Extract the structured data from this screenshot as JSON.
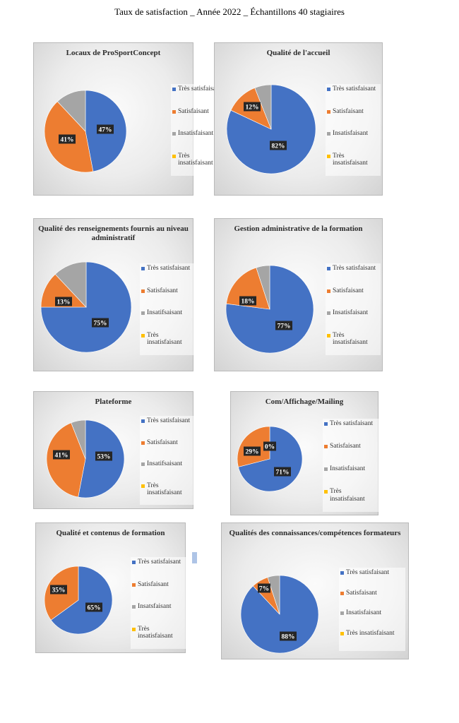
{
  "page_title": "Taux de satisfaction _ Année 2022 _ Échantillons 40 stagiaires",
  "colors": {
    "tres_satisfaisant": "#4472c4",
    "satisfaisant": "#ed7d31",
    "insatisfaisant": "#a5a5a5",
    "tres_insatisfaisant": "#ffc000"
  },
  "chart_data": [
    {
      "type": "pie",
      "title": "Locaux de ProSportConcept",
      "legend": [
        "Très satisfaisant",
        "Satisfaisant",
        "Insatisfaisant",
        "Très insatisfaisant"
      ],
      "values": [
        47,
        41,
        12,
        0
      ],
      "data_labels": [
        "47%",
        "41%",
        "",
        ""
      ]
    },
    {
      "type": "pie",
      "title": "Qualité de l'accueil",
      "legend": [
        "Très satisfaisant",
        "Satisfaisant",
        "Insatisfaisant",
        "Très insatisfaisant"
      ],
      "values": [
        82,
        12,
        6,
        0
      ],
      "data_labels": [
        "82%",
        "12%",
        "",
        ""
      ]
    },
    {
      "type": "pie",
      "title": "Qualité des renseignements fournis au niveau administratif",
      "legend": [
        "Très satisfaisant",
        "Satisfaisant",
        "Insatifsaisant",
        "Très insatisfaisant"
      ],
      "values": [
        75,
        13,
        12,
        0
      ],
      "data_labels": [
        "75%",
        "13%",
        "",
        ""
      ]
    },
    {
      "type": "pie",
      "title": "Gestion administrative de la formation",
      "legend": [
        "Très satisfaisant",
        "Satisfaisant",
        "Insatisfaisant",
        "Très insatisfaisant"
      ],
      "values": [
        77,
        18,
        5,
        0
      ],
      "data_labels": [
        "77%",
        "18%",
        "",
        ""
      ]
    },
    {
      "type": "pie",
      "title": "Plateforme",
      "legend": [
        "Très satisfaisant",
        "Satisfaisant",
        "Insatifsaisant",
        "Très insatisfaisant"
      ],
      "values": [
        53,
        41,
        6,
        0
      ],
      "data_labels": [
        "53%",
        "41%",
        "",
        ""
      ]
    },
    {
      "type": "pie",
      "title": "Com/Affichage/Mailing",
      "legend": [
        "Très satisfaisant",
        "Satisfaisant",
        "Insatisfaisant",
        "Très insatisfaisant"
      ],
      "values": [
        71,
        29,
        0,
        0
      ],
      "data_labels": [
        "71%",
        "29%",
        "0%",
        ""
      ]
    },
    {
      "type": "pie",
      "title": "Qualité et contenus de formation",
      "legend": [
        "Très satisfaisant",
        "Satisfaisant",
        "Insatsfaisant",
        "Très insatisfaisant"
      ],
      "values": [
        65,
        35,
        0,
        0
      ],
      "data_labels": [
        "65%",
        "35%",
        "",
        ""
      ]
    },
    {
      "type": "pie",
      "title": "Qualités des connaissances/compétences formateurs",
      "legend": [
        "Très satisfaisant",
        "Satisfaisant",
        "Insatisfaisant",
        "Très insatisfaisant"
      ],
      "values": [
        88,
        7,
        5,
        0
      ],
      "data_labels": [
        "88%",
        "7%",
        "",
        ""
      ]
    }
  ]
}
